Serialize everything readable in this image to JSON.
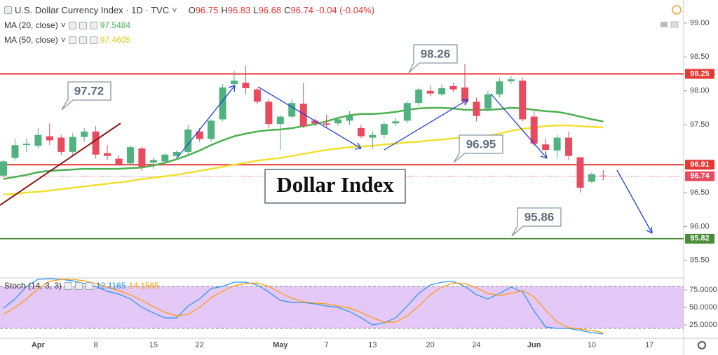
{
  "chart_data": [
    {
      "type": "candlestick",
      "title": "U.S. Dollar Currency Index · 1D · TVC",
      "ohlc_keys": [
        "O",
        "H",
        "L",
        "C"
      ],
      "change": "-0.04 (-0.04%)",
      "categories": [
        null,
        null,
        null,
        "Apr",
        null,
        null,
        null,
        null,
        "8",
        null,
        null,
        null,
        null,
        "15",
        null,
        null,
        null,
        "22",
        null,
        null,
        null,
        null,
        null,
        null,
        "May",
        null,
        null,
        null,
        "7",
        null,
        null,
        null,
        "13",
        null,
        null,
        null,
        null,
        "20",
        null,
        null,
        null,
        "24",
        null,
        null,
        null,
        null,
        "Jun",
        null,
        null,
        null,
        null,
        "10",
        null,
        null,
        null,
        null,
        "17"
      ],
      "open": [
        96.75,
        97.01,
        97.2,
        97.19,
        97.33,
        97.31,
        97.1,
        97.32,
        97.4,
        97.08,
        97.0,
        96.93,
        97.15,
        96.94,
        96.96,
        97.04,
        97.1,
        97.4,
        97.29,
        97.58,
        98.1,
        98.12,
        98.02,
        97.84,
        97.51,
        97.62,
        97.81,
        97.56,
        97.52,
        97.52,
        97.56,
        97.45,
        97.31,
        97.35,
        97.52,
        97.56,
        97.82,
        98.0,
        97.95,
        98.07,
        98.05,
        97.84,
        97.74,
        97.95,
        98.14,
        98.15,
        97.62,
        97.21,
        97.12,
        97.31,
        97.02,
        96.66,
        96.75,
        null,
        null,
        null,
        null
      ],
      "high": [
        96.98,
        97.3,
        97.3,
        97.45,
        97.52,
        97.35,
        97.38,
        97.45,
        97.48,
        97.2,
        97.05,
        97.2,
        97.18,
        97.02,
        97.08,
        97.12,
        97.5,
        97.45,
        97.58,
        98.1,
        98.3,
        98.37,
        98.05,
        97.88,
        97.65,
        97.88,
        98.12,
        97.6,
        97.65,
        97.62,
        97.7,
        97.5,
        97.4,
        97.55,
        97.6,
        97.85,
        98.05,
        98.08,
        98.1,
        98.12,
        98.4,
        97.9,
        98.0,
        98.2,
        98.22,
        98.2,
        97.7,
        97.3,
        97.35,
        97.4,
        97.03,
        96.8,
        96.83,
        null,
        null,
        null,
        null
      ],
      "low": [
        96.72,
        96.97,
        97.1,
        97.15,
        97.2,
        97.05,
        97.05,
        97.25,
        97.0,
        96.98,
        96.9,
        96.9,
        96.82,
        96.85,
        96.92,
        96.98,
        97.05,
        97.25,
        97.25,
        97.55,
        98.05,
        97.95,
        97.8,
        97.45,
        97.13,
        97.6,
        97.45,
        97.48,
        97.46,
        97.48,
        97.5,
        97.3,
        97.15,
        97.3,
        97.48,
        97.52,
        97.78,
        97.92,
        97.92,
        97.98,
        97.8,
        97.55,
        97.7,
        97.9,
        98.1,
        97.55,
        97.18,
        97.08,
        97.0,
        96.98,
        96.5,
        96.64,
        96.68,
        null,
        null,
        null,
        null
      ],
      "close": [
        96.96,
        97.2,
        97.22,
        97.35,
        97.27,
        97.1,
        97.32,
        97.4,
        97.06,
        97.04,
        96.92,
        97.17,
        96.88,
        96.98,
        97.06,
        97.1,
        97.43,
        97.29,
        97.56,
        98.05,
        98.15,
        98.04,
        97.84,
        97.51,
        97.62,
        97.82,
        97.48,
        97.52,
        97.5,
        97.58,
        97.63,
        97.33,
        97.35,
        97.51,
        97.55,
        97.82,
        98.02,
        97.96,
        98.04,
        98.02,
        97.84,
        97.63,
        97.95,
        98.14,
        98.17,
        97.58,
        97.22,
        97.13,
        97.31,
        97.04,
        96.57,
        96.77,
        96.74,
        null,
        null,
        null,
        null
      ],
      "up_color": "#4fb27f",
      "down_color": "#e84a5f",
      "series": [
        {
          "name": "MA (20, close)",
          "color": "#4caf50",
          "values": [
            96.7,
            96.73,
            96.76,
            96.8,
            96.82,
            96.83,
            96.84,
            96.85,
            96.85,
            96.85,
            96.85,
            96.86,
            96.87,
            96.9,
            96.94,
            96.99,
            97.05,
            97.12,
            97.2,
            97.27,
            97.33,
            97.37,
            97.4,
            97.42,
            97.43,
            97.45,
            97.48,
            97.51,
            97.55,
            97.6,
            97.64,
            97.66,
            97.66,
            97.67,
            97.69,
            97.72,
            97.74,
            97.75,
            97.75,
            97.74,
            97.72,
            97.72,
            97.72,
            97.73,
            97.75,
            97.74,
            97.72,
            97.7,
            97.69,
            97.66,
            97.62,
            97.58,
            97.5484,
            null,
            null,
            null,
            null
          ]
        },
        {
          "name": "MA (50, close)",
          "color": "#f0e130",
          "values": [
            96.47,
            96.48,
            96.5,
            96.51,
            96.53,
            96.55,
            96.57,
            96.59,
            96.61,
            96.63,
            96.65,
            96.67,
            96.7,
            96.72,
            96.74,
            96.76,
            96.79,
            96.82,
            96.85,
            96.88,
            96.91,
            96.94,
            96.97,
            96.99,
            97.01,
            97.04,
            97.07,
            97.1,
            97.13,
            97.15,
            97.17,
            97.18,
            97.19,
            97.21,
            97.22,
            97.24,
            97.25,
            97.27,
            97.28,
            97.3,
            97.31,
            97.32,
            97.34,
            97.37,
            97.41,
            97.44,
            97.46,
            97.48,
            97.49,
            97.49,
            97.48,
            97.47,
            97.4605,
            null,
            null,
            null,
            null
          ]
        }
      ],
      "ylim": [
        95.24,
        99.34
      ],
      "yticks": [
        {
          "value": 99,
          "label": "99.00"
        },
        {
          "value": 98.5,
          "label": "98.50"
        },
        {
          "value": 98,
          "label": "98.00"
        },
        {
          "value": 97.5,
          "label": "97.50"
        },
        {
          "value": 96.5,
          "label": "96.50"
        },
        {
          "value": 96,
          "label": "96.00"
        },
        {
          "value": 95.5,
          "label": "95.50"
        }
      ],
      "levels": [
        {
          "value": 98.25,
          "color": "#e53935"
        },
        {
          "value": 96.91,
          "color": "#e53935"
        },
        {
          "value": 95.82,
          "color": "#4a8c3a"
        }
      ],
      "callouts": [
        "97.72",
        "98.26",
        "96.95",
        "95.86"
      ],
      "annotation": "Dollar Index"
    },
    {
      "type": "line",
      "title": "Stoch (14, 3, 3)",
      "series": [
        {
          "name": "%K",
          "color": "#2196f3",
          "values": [
            49,
            62,
            80,
            90,
            91,
            90,
            88,
            84,
            80,
            73,
            69,
            62,
            50,
            42,
            35,
            35,
            52,
            62,
            77,
            80,
            86,
            86,
            82,
            72,
            60,
            57,
            57,
            55,
            52,
            50,
            44,
            35,
            25,
            28,
            35,
            52,
            70,
            82,
            86,
            87,
            80,
            68,
            62,
            70,
            79,
            72,
            45,
            22,
            20,
            20,
            17,
            14,
            12.1165,
            null,
            null,
            null,
            null
          ]
        },
        {
          "name": "%D",
          "color": "#ff9800",
          "values": [
            40,
            50,
            62,
            77,
            87,
            90,
            90,
            88,
            84,
            79,
            74,
            68,
            60,
            51,
            43,
            38,
            40,
            50,
            64,
            73,
            81,
            84,
            85,
            80,
            71,
            63,
            58,
            56,
            55,
            52,
            49,
            43,
            35,
            29,
            29,
            38,
            52,
            68,
            79,
            85,
            84,
            78,
            70,
            67,
            70,
            74,
            65,
            46,
            29,
            21,
            19,
            17,
            14.1565,
            null,
            null,
            null,
            null
          ]
        }
      ],
      "band": [
        20,
        80
      ],
      "band_color": "#e4c8f7",
      "ylim": [
        6,
        91
      ],
      "yticks": [
        {
          "value": 75,
          "label": "75.0000"
        },
        {
          "value": 50,
          "label": "50.0000"
        },
        {
          "value": 25,
          "label": "25.0000"
        }
      ]
    }
  ]
}
